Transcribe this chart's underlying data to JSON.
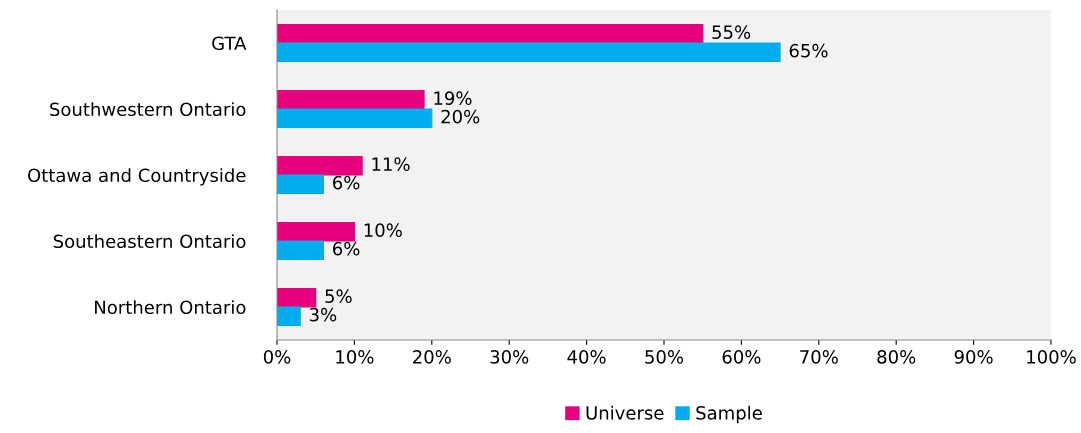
{
  "chart_data": {
    "type": "bar",
    "orientation": "horizontal",
    "categories": [
      "GTA",
      "Southwestern Ontario",
      "Ottawa and Countryside",
      "Southeastern Ontario",
      "Northern Ontario"
    ],
    "series": [
      {
        "name": "Universe",
        "color": "#e6007e",
        "values": [
          55,
          19,
          11,
          10,
          5
        ],
        "value_labels": [
          "55%",
          "19%",
          "11%",
          "10%",
          "5%"
        ]
      },
      {
        "name": "Sample",
        "color": "#00aeef",
        "values": [
          65,
          20,
          6,
          6,
          3
        ],
        "value_labels": [
          "65%",
          "20%",
          "6%",
          "6%",
          "3%"
        ]
      }
    ],
    "xlim": [
      0,
      100
    ],
    "xticks": [
      {
        "value": 0,
        "label": "0%"
      },
      {
        "value": 10,
        "label": "10%"
      },
      {
        "value": 20,
        "label": "20%"
      },
      {
        "value": 30,
        "label": "30%"
      },
      {
        "value": 40,
        "label": "40%"
      },
      {
        "value": 50,
        "label": "50%"
      },
      {
        "value": 60,
        "label": "60%"
      },
      {
        "value": 70,
        "label": "70%"
      },
      {
        "value": 80,
        "label": "80%"
      },
      {
        "value": 90,
        "label": "90%"
      },
      {
        "value": 100,
        "label": "100%"
      }
    ],
    "grid": false,
    "legend": "bottom"
  }
}
